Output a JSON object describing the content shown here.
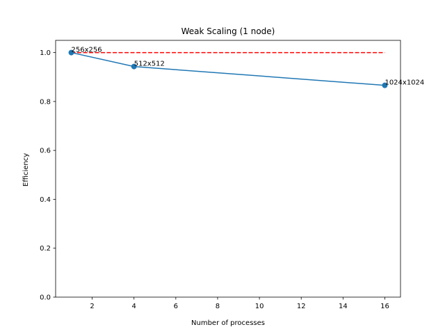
{
  "chart_data": {
    "type": "line",
    "title": "Weak Scaling (1 node)",
    "xlabel": "Number of processes",
    "ylabel": "Efficiency",
    "xlim": [
      0.25,
      16.75
    ],
    "ylim": [
      0,
      1.05
    ],
    "xticks": [
      2,
      4,
      6,
      8,
      10,
      12,
      14,
      16
    ],
    "yticks": [
      0.0,
      0.2,
      0.4,
      0.6,
      0.8,
      1.0
    ],
    "grid": false,
    "series": [
      {
        "x": [
          1,
          4,
          16
        ],
        "y": [
          1.0,
          0.943,
          0.866
        ],
        "point_labels": [
          "256x256",
          "512x512",
          "1024x1024"
        ],
        "color": "#1f77b4",
        "marker": "circle"
      }
    ],
    "reference_line": {
      "x": [
        1,
        16
      ],
      "y": [
        1.0,
        1.0
      ],
      "color": "#ff0000",
      "style": "dashed"
    }
  }
}
